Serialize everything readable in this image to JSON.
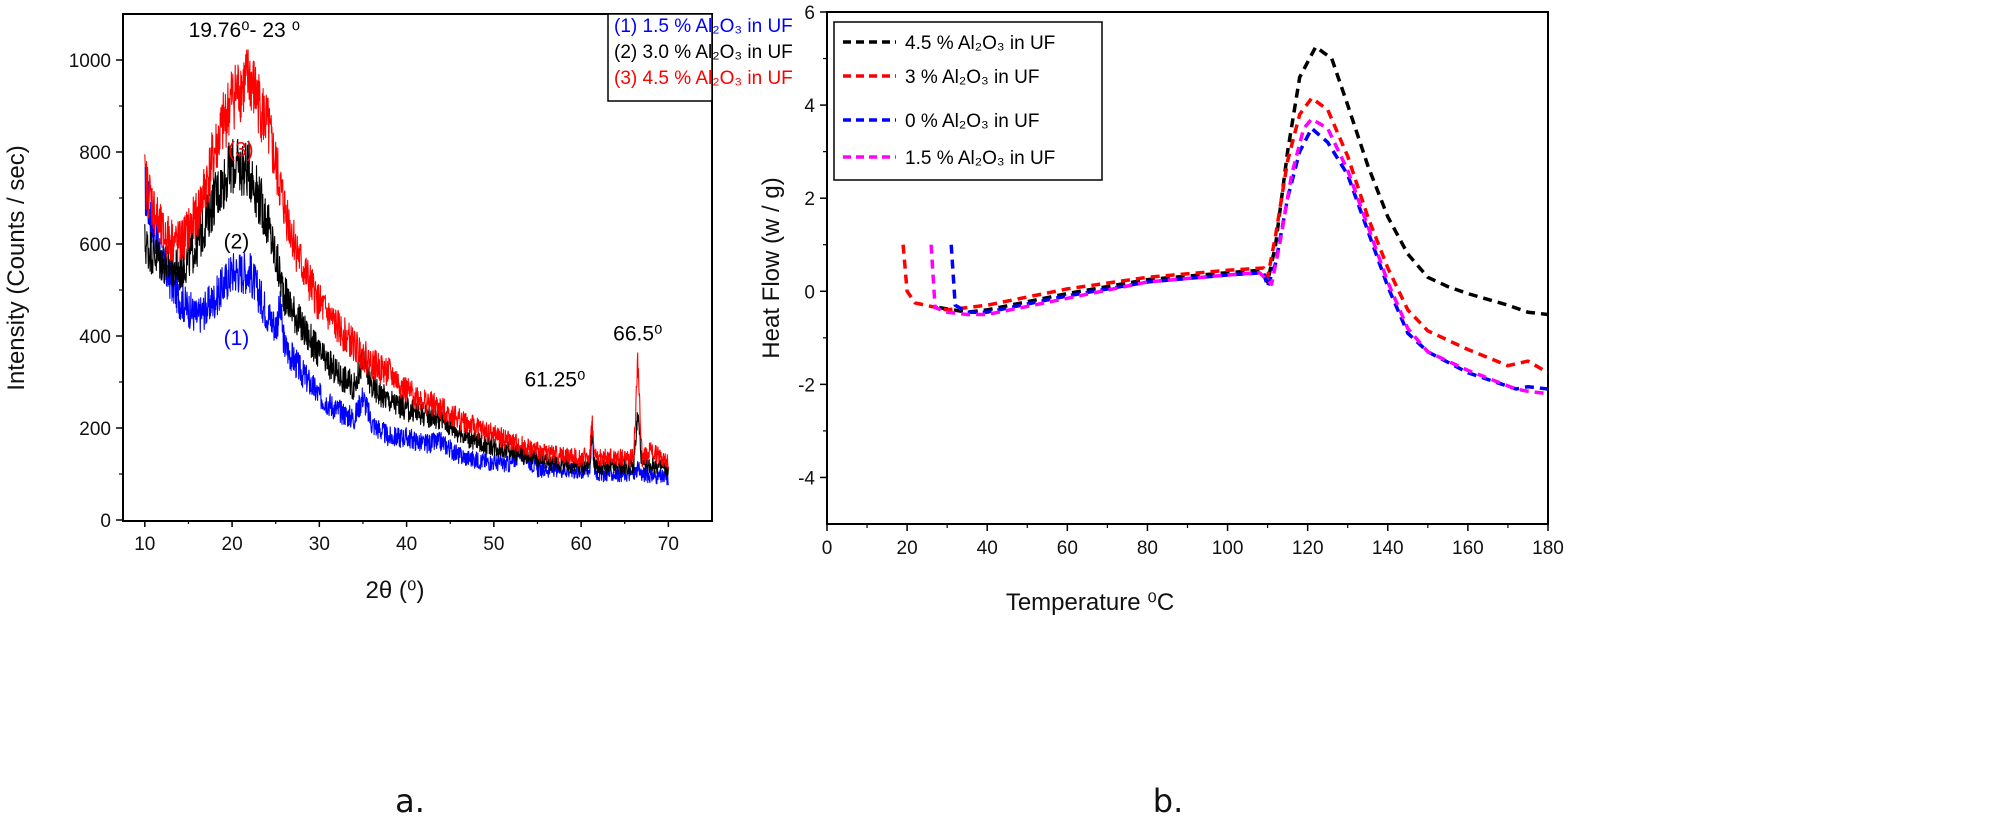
{
  "chart_data": [
    {
      "type": "line",
      "caption": "a.",
      "xlabel": "2θ (⁰)",
      "ylabel": "Intensity (Counts / sec)",
      "xlim": [
        7.5,
        75
      ],
      "ylim": [
        0,
        1100
      ],
      "xticks": [
        10,
        20,
        30,
        40,
        50,
        60,
        70
      ],
      "yticks": [
        0,
        200,
        400,
        600,
        800,
        1000
      ],
      "grid": false,
      "legend_position": "top-right",
      "annotations": [
        {
          "text": "19.76⁰- 23 ⁰",
          "x": 21.4,
          "y": 1050,
          "color": "#000000"
        },
        {
          "text": "(3)",
          "x": 21,
          "y": 790,
          "color": "#ff0000"
        },
        {
          "text": "(2)",
          "x": 20.5,
          "y": 590,
          "color": "#000000"
        },
        {
          "text": "(1)",
          "x": 20.5,
          "y": 380,
          "color": "#0000ff"
        },
        {
          "text": "61.25⁰",
          "x": 57,
          "y": 290,
          "color": "#000000"
        },
        {
          "text": "66.5⁰",
          "x": 66.5,
          "y": 390,
          "color": "#000000"
        }
      ],
      "series": [
        {
          "name": "(1) 1.5 % Al₂O₃ in UF",
          "color": "#0000ff",
          "x": [
            10,
            12,
            14,
            16,
            18,
            20,
            22,
            24,
            25,
            25.5,
            26,
            28,
            30,
            32,
            34,
            35,
            36,
            38,
            40,
            42,
            44,
            46,
            48,
            50,
            52,
            53,
            55,
            58,
            60,
            61,
            61.25,
            61.5,
            62,
            66,
            66.5,
            67,
            70
          ],
          "y": [
            720,
            560,
            480,
            440,
            480,
            540,
            540,
            450,
            420,
            460,
            380,
            320,
            270,
            240,
            220,
            270,
            210,
            180,
            180,
            165,
            170,
            140,
            130,
            125,
            120,
            150,
            110,
            110,
            105,
            110,
            200,
            110,
            100,
            100,
            110,
            100,
            90
          ]
        },
        {
          "name": "(2) 3.0 % Al₂O₃ in UF",
          "color": "#000000",
          "x": [
            10,
            12,
            14,
            16,
            18,
            20,
            22,
            24,
            25,
            26,
            28,
            30,
            32,
            34,
            35,
            36,
            38,
            40,
            42,
            44,
            46,
            48,
            50,
            52,
            55,
            58,
            60,
            61,
            61.25,
            61.5,
            62,
            66,
            66.5,
            67,
            68,
            70
          ],
          "y": [
            600,
            560,
            540,
            600,
            700,
            770,
            760,
            650,
            570,
            490,
            420,
            360,
            320,
            290,
            350,
            290,
            260,
            240,
            230,
            220,
            190,
            170,
            160,
            150,
            130,
            120,
            115,
            120,
            200,
            120,
            115,
            115,
            230,
            115,
            120,
            110
          ]
        },
        {
          "name": "(3) 4.5 % Al₂O₃ in UF",
          "color": "#ff0000",
          "x": [
            10,
            12,
            14,
            16,
            18,
            20,
            22,
            24,
            26,
            28,
            30,
            32,
            34,
            36,
            38,
            40,
            42,
            44,
            46,
            48,
            50,
            52,
            55,
            58,
            60,
            61,
            61.25,
            61.5,
            62,
            66,
            66.5,
            67,
            68,
            70
          ],
          "y": [
            740,
            620,
            600,
            660,
            800,
            920,
            960,
            860,
            680,
            550,
            470,
            420,
            380,
            340,
            320,
            280,
            260,
            240,
            220,
            200,
            185,
            170,
            150,
            140,
            135,
            140,
            220,
            140,
            135,
            135,
            340,
            135,
            150,
            125
          ]
        }
      ]
    },
    {
      "type": "line",
      "caption": "b.",
      "xlabel": "Temperature ⁰C",
      "ylabel": "Heat Flow (w / g)",
      "xlim": [
        0,
        180
      ],
      "ylim": [
        -5,
        6
      ],
      "xticks": [
        0,
        20,
        40,
        60,
        80,
        100,
        120,
        140,
        160,
        180
      ],
      "yticks": [
        -4,
        -2,
        0,
        2,
        4,
        6
      ],
      "grid": false,
      "legend_position": "top-left",
      "line_style": "dashed",
      "series": [
        {
          "name": "4.5 % Al₂O₃ in UF",
          "color": "#000000",
          "x": [
            28,
            35,
            40,
            60,
            80,
            100,
            108,
            110,
            112,
            115,
            118,
            122,
            126,
            130,
            135,
            140,
            145,
            150,
            155,
            160,
            170,
            175,
            180
          ],
          "y": [
            -0.35,
            -0.45,
            -0.4,
            -0.05,
            0.25,
            0.4,
            0.45,
            0.2,
            1.0,
            3.0,
            4.6,
            5.25,
            5.0,
            4.0,
            2.7,
            1.6,
            0.8,
            0.3,
            0.1,
            -0.05,
            -0.3,
            -0.45,
            -0.5
          ]
        },
        {
          "name": "3 % Al₂O₃ in UF",
          "color": "#ff0000",
          "x": [
            19,
            20,
            22,
            30,
            35,
            40,
            60,
            80,
            100,
            109,
            110,
            112,
            115,
            118,
            121,
            125,
            130,
            135,
            140,
            145,
            150,
            160,
            170,
            175,
            180
          ],
          "y": [
            1.0,
            0.0,
            -0.25,
            -0.4,
            -0.35,
            -0.3,
            0.05,
            0.3,
            0.45,
            0.5,
            0.3,
            1.2,
            2.8,
            3.8,
            4.15,
            3.9,
            2.9,
            1.6,
            0.5,
            -0.4,
            -0.85,
            -1.25,
            -1.6,
            -1.5,
            -1.75
          ]
        },
        {
          "name": "0 % Al₂O₃ in UF",
          "color": "#0000ff",
          "x": [
            31,
            32,
            35,
            40,
            60,
            80,
            100,
            109,
            110,
            112,
            115,
            118,
            121,
            125,
            130,
            135,
            140,
            145,
            150,
            160,
            172,
            175,
            180
          ],
          "y": [
            1.0,
            -0.3,
            -0.45,
            -0.45,
            -0.1,
            0.2,
            0.35,
            0.4,
            0.1,
            0.6,
            2.0,
            3.0,
            3.5,
            3.2,
            2.5,
            1.3,
            0.1,
            -0.9,
            -1.3,
            -1.75,
            -2.1,
            -2.05,
            -2.1
          ]
        },
        {
          "name": "1.5 % Al₂O₃ in UF",
          "color": "#ff00ff",
          "x": [
            26,
            27,
            30,
            35,
            40,
            60,
            80,
            100,
            108,
            111,
            113,
            116,
            119,
            121,
            125,
            130,
            135,
            140,
            145,
            150,
            160,
            172,
            175,
            180
          ],
          "y": [
            1.0,
            -0.35,
            -0.45,
            -0.5,
            -0.5,
            -0.15,
            0.2,
            0.35,
            0.4,
            0.15,
            1.0,
            2.5,
            3.5,
            3.7,
            3.5,
            2.6,
            1.4,
            0.2,
            -0.8,
            -1.3,
            -1.7,
            -2.1,
            -2.15,
            -2.2
          ]
        }
      ]
    }
  ]
}
